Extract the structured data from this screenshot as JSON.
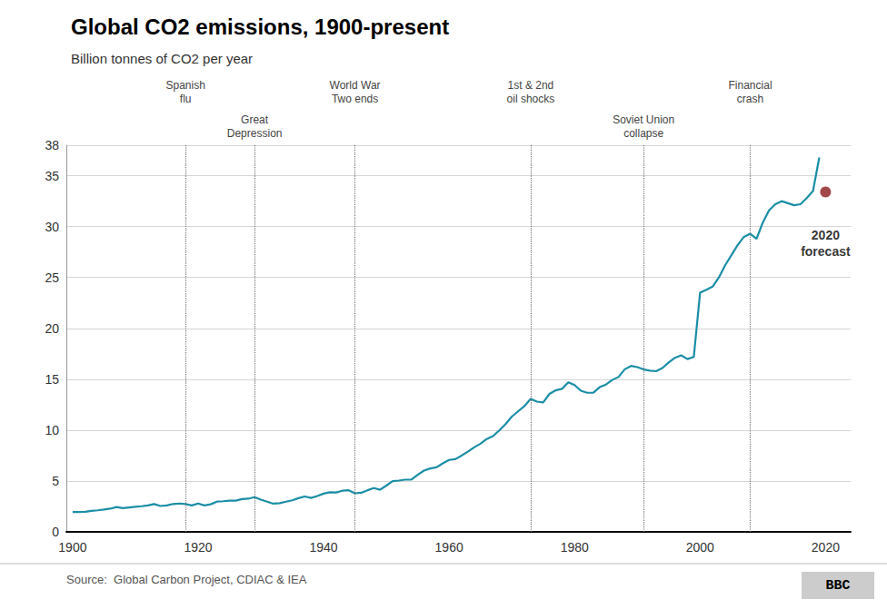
{
  "chart_data": {
    "type": "line",
    "title": "Global CO2 emissions, 1900-present",
    "subtitle": "Billion tonnes of CO2 per year",
    "source": "Source:  Global Carbon Project, CDIAC & IEA",
    "logo": "BBC",
    "xlim": [
      1899,
      2024
    ],
    "xticks": [
      1900,
      1920,
      1940,
      1960,
      1980,
      2000,
      2020
    ],
    "ylim": [
      0,
      38
    ],
    "yticks": [
      0,
      5,
      10,
      15,
      20,
      25,
      30,
      35
    ],
    "grid": true,
    "annotations": [
      {
        "text": "Spanish\nflu",
        "x": 1918
      },
      {
        "text": "Great\nDepression",
        "x": 1929
      },
      {
        "text": "World War\nTwo ends",
        "x": 1945
      },
      {
        "text": "1st & 2nd\noil shocks",
        "x": 1973
      },
      {
        "text": "Soviet Union\ncollapse",
        "x": 1991
      },
      {
        "text": "Financial\ncrash",
        "x": 2008
      }
    ],
    "series": [
      {
        "type": "line",
        "color": "#1b8ea6",
        "x": [
          1900,
          1901,
          1902,
          1903,
          1904,
          1905,
          1906,
          1907,
          1908,
          1909,
          1910,
          1911,
          1912,
          1913,
          1914,
          1915,
          1916,
          1917,
          1918,
          1919,
          1920,
          1921,
          1922,
          1923,
          1924,
          1925,
          1926,
          1927,
          1928,
          1929,
          1930,
          1931,
          1932,
          1933,
          1934,
          1935,
          1936,
          1937,
          1938,
          1939,
          1940,
          1941,
          1942,
          1943,
          1944,
          1945,
          1946,
          1947,
          1948,
          1949,
          1950,
          1951,
          1952,
          1953,
          1954,
          1955,
          1956,
          1957,
          1958,
          1959,
          1960,
          1961,
          1962,
          1963,
          1964,
          1965,
          1966,
          1967,
          1968,
          1969,
          1970,
          1971,
          1972,
          1973,
          1974,
          1975,
          1976,
          1977,
          1978,
          1979,
          1980,
          1981,
          1982,
          1983,
          1984,
          1985,
          1986,
          1987,
          1988,
          1989,
          1990,
          1991,
          1992,
          1993,
          1994,
          1995,
          1996,
          1997,
          1998,
          1999,
          2000,
          2001,
          2002,
          2003,
          2004,
          2005,
          2006,
          2007,
          2008,
          2009,
          2010,
          2011,
          2012,
          2013,
          2014,
          2015,
          2016,
          2017,
          2018,
          2019
        ],
        "values": [
          1.96,
          1.95,
          1.97,
          2.07,
          2.12,
          2.19,
          2.28,
          2.44,
          2.33,
          2.4,
          2.47,
          2.52,
          2.6,
          2.73,
          2.54,
          2.6,
          2.74,
          2.79,
          2.73,
          2.6,
          2.79,
          2.6,
          2.71,
          2.97,
          3.01,
          3.07,
          3.07,
          3.22,
          3.26,
          3.41,
          3.17,
          2.97,
          2.77,
          2.82,
          2.97,
          3.1,
          3.31,
          3.48,
          3.33,
          3.53,
          3.76,
          3.89,
          3.87,
          4.04,
          4.09,
          3.79,
          3.84,
          4.09,
          4.3,
          4.14,
          4.55,
          4.98,
          5.04,
          5.13,
          5.13,
          5.61,
          6.02,
          6.23,
          6.35,
          6.73,
          7.07,
          7.15,
          7.5,
          7.88,
          8.31,
          8.66,
          9.13,
          9.41,
          9.97,
          10.6,
          11.33,
          11.84,
          12.36,
          13.07,
          12.8,
          12.72,
          13.56,
          13.91,
          14.06,
          14.7,
          14.43,
          13.87,
          13.67,
          13.68,
          14.22,
          14.48,
          14.93,
          15.22,
          15.98,
          16.31,
          16.19,
          15.96,
          15.85,
          15.79,
          16.1,
          16.65,
          17.11,
          17.35,
          16.98,
          17.19,
          23.5,
          23.8,
          24.1,
          25.0,
          26.2,
          27.2,
          28.2,
          29.0,
          29.3,
          28.8,
          30.4,
          31.6,
          32.2,
          32.5,
          32.3,
          32.1,
          32.2,
          32.8,
          33.5,
          36.8
        ]
      },
      {
        "type": "scatter",
        "color": "#8b1a1a",
        "x": [
          2020
        ],
        "values": [
          33.4
        ],
        "label": "2020\nforecast"
      }
    ]
  }
}
